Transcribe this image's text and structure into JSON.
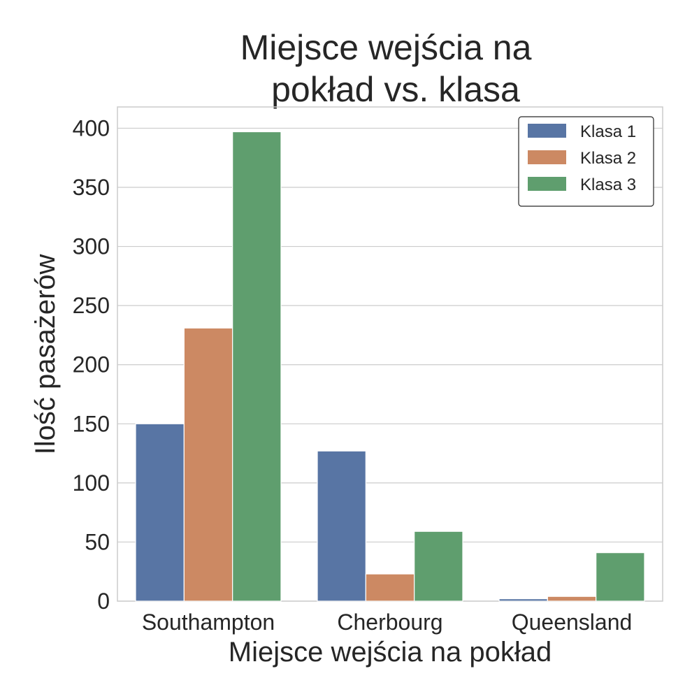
{
  "chart_data": {
    "type": "bar",
    "title_lines": [
      "Miejsce wejścia na",
      "pokład vs. klasa"
    ],
    "xlabel": "Miejsce wejścia na pokład",
    "ylabel": "Ilość pasażerów",
    "categories": [
      "Southampton",
      "Cherbourg",
      "Queensland"
    ],
    "series": [
      {
        "name": "Klasa 1",
        "values": [
          150,
          127,
          2
        ],
        "color": "#5875a4"
      },
      {
        "name": "Klasa 2",
        "values": [
          231,
          23,
          4
        ],
        "color": "#cc8963"
      },
      {
        "name": "Klasa 3",
        "values": [
          397,
          59,
          41
        ],
        "color": "#5f9e6e"
      }
    ],
    "ylim": [
      0,
      418
    ],
    "yticks": [
      0,
      50,
      100,
      150,
      200,
      250,
      300,
      350,
      400
    ],
    "grid": true,
    "legend_position": "top-right"
  }
}
